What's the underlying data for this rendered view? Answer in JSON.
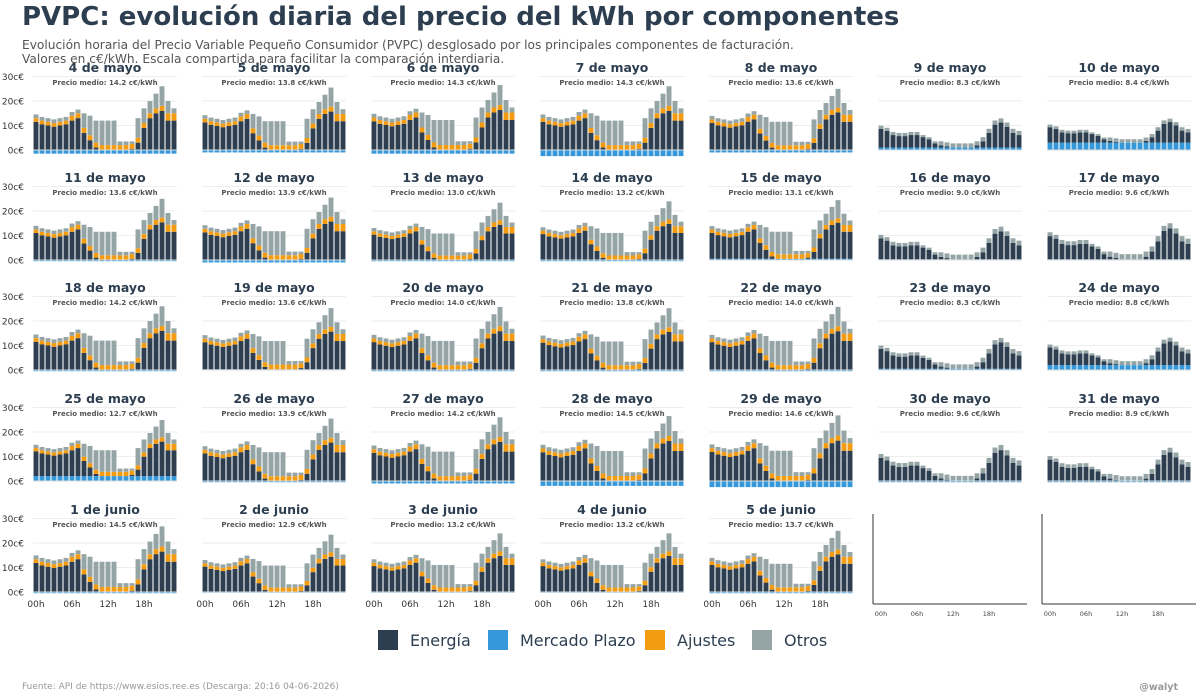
{
  "title": "PVPC: evolución diaria del precio del kWh por componentes",
  "subtitle": "Evolución horaria del Precio Variable Pequeño Consumidor (PVPC) desglosado por los principales componentes de facturación.\nValores en c€/kWh. Escala compartida para facilitar la comparación interdiaria.",
  "footer": "Fuente: API de https://www.esios.ree.es (Descarga: 20:16 04-06-2026)",
  "handle": "@walyt",
  "colors": {
    "Energía": "#2c3e50",
    "Mercado Plazo": "#3498db",
    "Ajustes": "#f39c12",
    "Otros": "#95a5a6"
  },
  "legend": [
    {
      "label": "Energía",
      "color": "#2c3e50"
    },
    {
      "label": "Mercado Plazo",
      "color": "#3498db"
    },
    {
      "label": "Ajustes",
      "color": "#f39c12"
    },
    {
      "label": "Otros",
      "color": "#95a5a6"
    }
  ],
  "axis": {
    "y_ticks": [
      "0c€",
      "10c€",
      "20c€",
      "30c€"
    ],
    "y_values": [
      0,
      10,
      20,
      30
    ],
    "ylim": [
      -3,
      32
    ],
    "x_ticks": [
      "00h",
      "06h",
      "12h",
      "18h"
    ],
    "x_tick_hours": [
      0,
      6,
      12,
      18
    ]
  },
  "chart_data": {
    "type": "bar",
    "stacked": true,
    "series_names": [
      "Energía",
      "Mercado Plazo",
      "Ajustes",
      "Otros"
    ],
    "x": "hour 0-23",
    "ylabel": "c€/kWh",
    "shape_values": {
      "wkd": [
        [
          11.5,
          1.5,
          1.5
        ],
        [
          10.5,
          1.5,
          1.5
        ],
        [
          10,
          1.5,
          1.5
        ],
        [
          9.5,
          1.5,
          1.5
        ],
        [
          10,
          1.5,
          1.5
        ],
        [
          10.5,
          1.5,
          1.5
        ],
        [
          12,
          2,
          1.5
        ],
        [
          13,
          2,
          1.5
        ],
        [
          7,
          2,
          6
        ],
        [
          4,
          2,
          8
        ],
        [
          1,
          2,
          9
        ],
        [
          0,
          2,
          10
        ],
        [
          0,
          2,
          10
        ],
        [
          0,
          2,
          10
        ],
        [
          0,
          2,
          1.5
        ],
        [
          0,
          2,
          1.5
        ],
        [
          0.5,
          2,
          1
        ],
        [
          3,
          2,
          8
        ],
        [
          9,
          2,
          6
        ],
        [
          13,
          2,
          5
        ],
        [
          15,
          2,
          6
        ],
        [
          16,
          2,
          8
        ],
        [
          12,
          3,
          5
        ],
        [
          12,
          3,
          2
        ]
      ],
      "wke": [
        [
          9,
          0,
          1.5
        ],
        [
          8,
          0,
          1.5
        ],
        [
          6,
          0,
          1.5
        ],
        [
          5.5,
          0,
          1.5
        ],
        [
          5.5,
          0,
          1.5
        ],
        [
          6,
          0,
          1.5
        ],
        [
          6,
          0,
          1.5
        ],
        [
          5,
          0,
          1
        ],
        [
          4,
          0,
          1
        ],
        [
          2,
          0,
          1
        ],
        [
          1,
          0,
          2
        ],
        [
          0.5,
          0,
          2
        ],
        [
          0,
          0,
          2
        ],
        [
          0,
          0,
          2
        ],
        [
          0,
          0,
          2
        ],
        [
          0,
          0,
          2
        ],
        [
          1,
          0,
          2
        ],
        [
          3,
          0,
          2
        ],
        [
          7,
          0,
          2
        ],
        [
          11,
          0,
          2
        ],
        [
          12,
          0,
          2
        ],
        [
          10,
          0,
          2
        ],
        [
          7,
          0,
          2
        ],
        [
          6,
          0,
          2
        ]
      ]
    },
    "panels": [
      {
        "date": "4 de mayo",
        "precio_medio": "Precio medio: 14.2 c€/kWh",
        "mp": -1.5,
        "shape": "wkd",
        "scale": 1.0
      },
      {
        "date": "5 de mayo",
        "precio_medio": "Precio medio: 13.8 c€/kWh",
        "mp": -1.0,
        "shape": "wkd",
        "scale": 0.98
      },
      {
        "date": "6 de mayo",
        "precio_medio": "Precio medio: 14.3 c€/kWh",
        "mp": -1.5,
        "shape": "wkd",
        "scale": 1.02
      },
      {
        "date": "7 de mayo",
        "precio_medio": "Precio medio: 14.3 c€/kWh",
        "mp": -2.5,
        "shape": "wkd",
        "scale": 1.0
      },
      {
        "date": "8 de mayo",
        "precio_medio": "Precio medio: 13.6 c€/kWh",
        "mp": -1.0,
        "shape": "wkd",
        "scale": 0.96
      },
      {
        "date": "9 de mayo",
        "precio_medio": "Precio medio: 8.3 c€/kWh",
        "mp": 1.0,
        "shape": "wke",
        "scale": 0.85
      },
      {
        "date": "10 de mayo",
        "precio_medio": "Precio medio: 8.4 c€/kWh",
        "mp": 3.0,
        "shape": "wke",
        "scale": 0.7
      },
      {
        "date": "11 de mayo",
        "precio_medio": "Precio medio: 13.6 c€/kWh",
        "mp": -0.5,
        "shape": "wkd",
        "scale": 0.96
      },
      {
        "date": "12 de mayo",
        "precio_medio": "Precio medio: 13.9 c€/kWh",
        "mp": -1.0,
        "shape": "wkd",
        "scale": 0.98
      },
      {
        "date": "13 de mayo",
        "precio_medio": "Precio medio: 13.0 c€/kWh",
        "mp": -0.5,
        "shape": "wkd",
        "scale": 0.9
      },
      {
        "date": "14 de mayo",
        "precio_medio": "Precio medio: 13.2 c€/kWh",
        "mp": -0.5,
        "shape": "wkd",
        "scale": 0.92
      },
      {
        "date": "15 de mayo",
        "precio_medio": "Precio medio: 13.1 c€/kWh",
        "mp": 0.5,
        "shape": "wkd",
        "scale": 0.92
      },
      {
        "date": "16 de mayo",
        "precio_medio": "Precio medio: 9.0 c€/kWh",
        "mp": 0.3,
        "shape": "wke",
        "scale": 0.95
      },
      {
        "date": "17 de mayo",
        "precio_medio": "Precio medio: 9.6 c€/kWh",
        "mp": 0.3,
        "shape": "wke",
        "scale": 1.05
      },
      {
        "date": "18 de mayo",
        "precio_medio": "Precio medio: 14.2 c€/kWh",
        "mp": -0.5,
        "shape": "wkd",
        "scale": 1.0
      },
      {
        "date": "19 de mayo",
        "precio_medio": "Precio medio: 13.6 c€/kWh",
        "mp": 0.3,
        "shape": "wkd",
        "scale": 0.96
      },
      {
        "date": "20 de mayo",
        "precio_medio": "Precio medio: 14.0 c€/kWh",
        "mp": -0.5,
        "shape": "wkd",
        "scale": 0.99
      },
      {
        "date": "21 de mayo",
        "precio_medio": "Precio medio: 13.8 c€/kWh",
        "mp": -0.5,
        "shape": "wkd",
        "scale": 0.97
      },
      {
        "date": "22 de mayo",
        "precio_medio": "Precio medio: 14.0 c€/kWh",
        "mp": -0.5,
        "shape": "wkd",
        "scale": 0.99
      },
      {
        "date": "23 de mayo",
        "precio_medio": "Precio medio: 8.3 c€/kWh",
        "mp": 0.5,
        "shape": "wke",
        "scale": 0.9
      },
      {
        "date": "24 de mayo",
        "precio_medio": "Precio medio: 8.8 c€/kWh",
        "mp": 2.0,
        "shape": "wke",
        "scale": 0.8
      },
      {
        "date": "25 de mayo",
        "precio_medio": "Precio medio: 12.7 c€/kWh",
        "mp": 2.0,
        "shape": "wkd",
        "scale": 0.88
      },
      {
        "date": "26 de mayo",
        "precio_medio": "Precio medio: 13.9 c€/kWh",
        "mp": -0.5,
        "shape": "wkd",
        "scale": 0.98
      },
      {
        "date": "27 de mayo",
        "precio_medio": "Precio medio: 14.2 c€/kWh",
        "mp": -1.0,
        "shape": "wkd",
        "scale": 1.0
      },
      {
        "date": "28 de mayo",
        "precio_medio": "Precio medio: 14.5 c€/kWh",
        "mp": -2.0,
        "shape": "wkd",
        "scale": 1.02
      },
      {
        "date": "29 de mayo",
        "precio_medio": "Precio medio: 14.6 c€/kWh",
        "mp": -2.5,
        "shape": "wkd",
        "scale": 1.03
      },
      {
        "date": "30 de mayo",
        "precio_medio": "Precio medio: 9.6 c€/kWh",
        "mp": -0.5,
        "shape": "wke",
        "scale": 1.05
      },
      {
        "date": "31 de mayo",
        "precio_medio": "Precio medio: 8.9 c€/kWh",
        "mp": -0.5,
        "shape": "wke",
        "scale": 0.97
      },
      {
        "date": "1 de junio",
        "precio_medio": "Precio medio: 14.5 c€/kWh",
        "mp": -0.5,
        "shape": "wkd",
        "scale": 1.03
      },
      {
        "date": "2 de junio",
        "precio_medio": "Precio medio: 12.9 c€/kWh",
        "mp": -0.3,
        "shape": "wkd",
        "scale": 0.9
      },
      {
        "date": "3 de junio",
        "precio_medio": "Precio medio: 13.2 c€/kWh",
        "mp": -0.3,
        "shape": "wkd",
        "scale": 0.92
      },
      {
        "date": "4 de junio",
        "precio_medio": "Precio medio: 13.2 c€/kWh",
        "mp": -0.3,
        "shape": "wkd",
        "scale": 0.92
      },
      {
        "date": "5 de junio",
        "precio_medio": "Precio medio: 13.7 c€/kWh",
        "mp": -0.5,
        "shape": "wkd",
        "scale": 0.96
      }
    ],
    "empty_panels": 2
  }
}
